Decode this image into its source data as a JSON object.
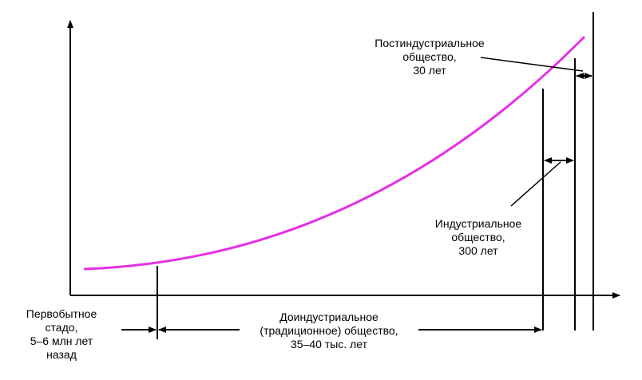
{
  "labels": {
    "primitive": [
      "Первобытное",
      "стадо,",
      "5–6 млн лет",
      "назад"
    ],
    "preindustrial": [
      "Доиндустриальное",
      "(традиционное) общество,",
      "35–40 тыс. лет"
    ],
    "industrial": [
      "Индустриальное",
      "общество,",
      "300 лет"
    ],
    "postindustrial": [
      "Постиндустриальное",
      "общество,",
      "30 лет"
    ]
  },
  "colors": {
    "curve": "#e62ee6",
    "ink": "#000000"
  }
}
